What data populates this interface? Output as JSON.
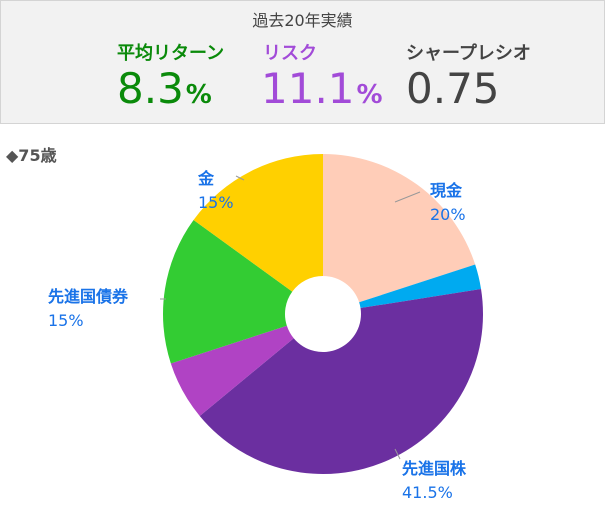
{
  "stats": {
    "title": "過去20年実績",
    "return_label": "平均リターン",
    "return_value": "8.3",
    "return_unit": "%",
    "risk_label": "リスク",
    "risk_value": "11.1",
    "risk_unit": "%",
    "sharpe_label": "シャープレシオ",
    "sharpe_value": "0.75"
  },
  "colors": {
    "return": "#0a8a0a",
    "risk": "#a24bd8",
    "sharpe": "#444444",
    "label_text": "#1a73e8"
  },
  "age_label": "◆75歳",
  "chart_data": {
    "type": "pie",
    "style": "donut",
    "start_angle_deg": 0,
    "direction": "clockwise",
    "slices": [
      {
        "name": "現金",
        "value": 20,
        "label": "20%",
        "color": "#ffcdb8",
        "show_label": true
      },
      {
        "name": "",
        "value": 2.5,
        "label": "",
        "color": "#00aaf0",
        "show_label": false
      },
      {
        "name": "先進国株",
        "value": 41.5,
        "label": "41.5%",
        "color": "#6b2fa0",
        "show_label": true
      },
      {
        "name": "",
        "value": 6,
        "label": "",
        "color": "#b043c4",
        "show_label": false
      },
      {
        "name": "先進国債券",
        "value": 15,
        "label": "15%",
        "color": "#33cc33",
        "show_label": true
      },
      {
        "name": "金",
        "value": 15,
        "label": "15%",
        "color": "#ffd000",
        "show_label": true
      }
    ]
  }
}
